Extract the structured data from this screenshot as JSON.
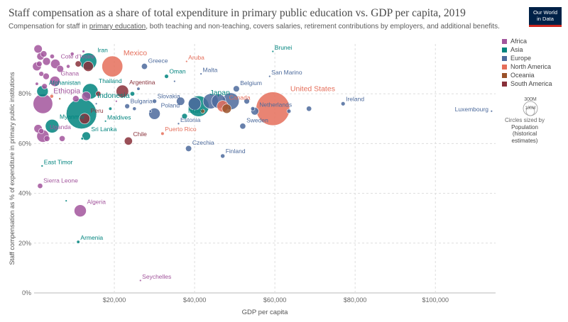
{
  "header": {
    "title": "Staff compensation as a share of total expenditure in primary public education vs. GDP per capita, 2019",
    "subtitle_before": "Compensation for staff in ",
    "subtitle_link": "primary education",
    "subtitle_after": ", both teaching and non-teaching, covers salaries, retirement contributions by employers, and additional benefits.",
    "logo_line1": "Our World",
    "logo_line2": "in Data"
  },
  "legend": {
    "items": [
      {
        "label": "Africa",
        "color": "#a2559c"
      },
      {
        "label": "Asia",
        "color": "#00847e"
      },
      {
        "label": "Europe",
        "color": "#4c6a9c"
      },
      {
        "label": "North America",
        "color": "#e56e5a"
      },
      {
        "label": "Oceania",
        "color": "#9a5129"
      },
      {
        "label": "South America",
        "color": "#883039"
      }
    ],
    "size_big": "300M",
    "size_small": "100M",
    "size_note_1": "Circles sized by",
    "size_note_2": "Population",
    "size_note_3": "(historical",
    "size_note_4": "estimates)"
  },
  "chart_data": {
    "type": "scatter",
    "title": "Staff compensation as a share of total expenditure in primary public education vs. GDP per capita, 2019",
    "xlabel": "GDP per capita",
    "ylabel": "Staff compensation as % of expenditure in primary public institutions",
    "xlim": [
      0,
      115000
    ],
    "ylim": [
      0,
      100
    ],
    "xticks": [
      20000,
      40000,
      60000,
      80000,
      100000
    ],
    "xtick_labels": [
      "$20,000",
      "$40,000",
      "$60,000",
      "$80,000",
      "$100,000"
    ],
    "yticks": [
      0,
      20,
      40,
      60,
      80
    ],
    "ytick_labels": [
      "0%",
      "20%",
      "40%",
      "60%",
      "80%"
    ],
    "points": [
      {
        "label": "Brunei",
        "x": 59500,
        "y": 97,
        "region": "Asia",
        "pop": 0.4
      },
      {
        "label": "Iran",
        "x": 13500,
        "y": 93,
        "region": "Asia",
        "pop": 84
      },
      {
        "label": "Cote d'Ivoire",
        "x": 5300,
        "y": 92,
        "region": "Africa",
        "pop": 26
      },
      {
        "label": "Mexico",
        "x": 19500,
        "y": 91,
        "region": "North America",
        "pop": 127
      },
      {
        "label": "Aruba",
        "x": 38000,
        "y": 93,
        "region": "North America",
        "pop": 0.1
      },
      {
        "label": "Greece",
        "x": 27500,
        "y": 91,
        "region": "Europe",
        "pop": 10.5
      },
      {
        "label": "Malta",
        "x": 41600,
        "y": 88,
        "region": "Europe",
        "pop": 0.5
      },
      {
        "label": "San Marino",
        "x": 58700,
        "y": 87,
        "region": "Europe",
        "pop": 0.03
      },
      {
        "label": "Oman",
        "x": 33000,
        "y": 87,
        "region": "Asia",
        "pop": 5
      },
      {
        "label": "Ghana",
        "x": 5200,
        "y": 85,
        "region": "Africa",
        "pop": 31
      },
      {
        "label": "Belgium",
        "x": 50400,
        "y": 82,
        "region": "Europe",
        "pop": 11.5
      },
      {
        "label": "Afghanistan",
        "x": 2100,
        "y": 81,
        "region": "Asia",
        "pop": 38
      },
      {
        "label": "Thailand",
        "x": 14000,
        "y": 81,
        "region": "Asia",
        "pop": 70
      },
      {
        "label": "Argentina",
        "x": 22000,
        "y": 81,
        "region": "South America",
        "pop": 45
      },
      {
        "label": "Ethiopia",
        "x": 2200,
        "y": 76,
        "region": "Africa",
        "pop": 112
      },
      {
        "label": "Indonesia",
        "x": 11800,
        "y": 72,
        "region": "Asia",
        "pop": 270
      },
      {
        "label": "Bulgaria",
        "x": 23200,
        "y": 75,
        "region": "Europe",
        "pop": 7
      },
      {
        "label": "Slovakia",
        "x": 30000,
        "y": 77,
        "region": "Europe",
        "pop": 5.5
      },
      {
        "label": "Japan",
        "x": 41000,
        "y": 75,
        "region": "Asia",
        "pop": 126
      },
      {
        "label": "Canada",
        "x": 47000,
        "y": 75,
        "region": "North America",
        "pop": 38
      },
      {
        "label": "United States",
        "x": 59500,
        "y": 74,
        "region": "North America",
        "pop": 330
      },
      {
        "label": "Ireland",
        "x": 77000,
        "y": 76,
        "region": "Europe",
        "pop": 5
      },
      {
        "label": "Luxembourg",
        "x": 114000,
        "y": 73,
        "region": "Europe",
        "pop": 0.6
      },
      {
        "label": "Netherlands",
        "x": 55000,
        "y": 73,
        "region": "Europe",
        "pop": 17.3
      },
      {
        "label": "Poland",
        "x": 30000,
        "y": 72,
        "region": "Europe",
        "pop": 38
      },
      {
        "label": "Israel",
        "x": 37500,
        "y": 71,
        "region": "Asia",
        "pop": 9
      },
      {
        "label": "Peru",
        "x": 12600,
        "y": 70,
        "region": "South America",
        "pop": 33
      },
      {
        "label": "Maldives",
        "x": 17800,
        "y": 69,
        "region": "Asia",
        "pop": 0.5
      },
      {
        "label": "Myanmar",
        "x": 4500,
        "y": 67,
        "region": "Asia",
        "pop": 54
      },
      {
        "label": "Estonia",
        "x": 36000,
        "y": 68,
        "region": "Europe",
        "pop": 1.3
      },
      {
        "label": "Sweden",
        "x": 52000,
        "y": 67,
        "region": "Europe",
        "pop": 10.3
      },
      {
        "label": "Uganda",
        "x": 2200,
        "y": 63,
        "region": "Africa",
        "pop": 44
      },
      {
        "label": "Sri Lanka",
        "x": 13000,
        "y": 63,
        "region": "Asia",
        "pop": 21
      },
      {
        "label": "Puerto Rico",
        "x": 32000,
        "y": 64,
        "region": "North America",
        "pop": 3.2
      },
      {
        "label": "Chile",
        "x": 23500,
        "y": 61,
        "region": "South America",
        "pop": 19
      },
      {
        "label": "Czechia",
        "x": 38500,
        "y": 58,
        "region": "Europe",
        "pop": 10.7
      },
      {
        "label": "Finland",
        "x": 47000,
        "y": 55,
        "region": "Europe",
        "pop": 5.5
      },
      {
        "label": "East Timor",
        "x": 2000,
        "y": 51,
        "region": "Asia",
        "pop": 1.3
      },
      {
        "label": "Sierra Leone",
        "x": 1500,
        "y": 43,
        "region": "Africa",
        "pop": 8
      },
      {
        "label": "Algeria",
        "x": 11500,
        "y": 33,
        "region": "Africa",
        "pop": 43
      },
      {
        "label": "Armenia",
        "x": 11000,
        "y": 20.5,
        "region": "Asia",
        "pop": 3
      },
      {
        "label": "Seychelles",
        "x": 26500,
        "y": 5,
        "region": "Africa",
        "pop": 0.1
      }
    ],
    "unlabeled_points": [
      {
        "x": 1000,
        "y": 98,
        "region": "Africa",
        "pop": 20
      },
      {
        "x": 1600,
        "y": 95,
        "region": "Africa",
        "pop": 16
      },
      {
        "x": 2400,
        "y": 96,
        "region": "Africa",
        "pop": 12
      },
      {
        "x": 3100,
        "y": 93,
        "region": "Africa",
        "pop": 18
      },
      {
        "x": 700,
        "y": 91,
        "region": "Africa",
        "pop": 22
      },
      {
        "x": 1300,
        "y": 92,
        "region": "Africa",
        "pop": 9
      },
      {
        "x": 4500,
        "y": 95,
        "region": "Africa",
        "pop": 6
      },
      {
        "x": 9500,
        "y": 96,
        "region": "Africa",
        "pop": 4
      },
      {
        "x": 12300,
        "y": 97,
        "region": "Africa",
        "pop": 2
      },
      {
        "x": 6500,
        "y": 90,
        "region": "Africa",
        "pop": 14
      },
      {
        "x": 8500,
        "y": 91,
        "region": "Africa",
        "pop": 4
      },
      {
        "x": 11000,
        "y": 92,
        "region": "South America",
        "pop": 11
      },
      {
        "x": 13500,
        "y": 91,
        "region": "South America",
        "pop": 30
      },
      {
        "x": 3000,
        "y": 87,
        "region": "Africa",
        "pop": 12
      },
      {
        "x": 1800,
        "y": 88,
        "region": "Africa",
        "pop": 7
      },
      {
        "x": 2600,
        "y": 83,
        "region": "Africa",
        "pop": 9
      },
      {
        "x": 700,
        "y": 84,
        "region": "Africa",
        "pop": 3
      },
      {
        "x": 4400,
        "y": 79,
        "region": "North America",
        "pop": 4
      },
      {
        "x": 6400,
        "y": 78,
        "region": "Oceania",
        "pop": 0.9
      },
      {
        "x": 10400,
        "y": 78,
        "region": "Africa",
        "pop": 12
      },
      {
        "x": 13000,
        "y": 79,
        "region": "Africa",
        "pop": 24
      },
      {
        "x": 16000,
        "y": 80,
        "region": "South America",
        "pop": 8
      },
      {
        "x": 20500,
        "y": 77,
        "region": "Africa",
        "pop": 0.1
      },
      {
        "x": 24500,
        "y": 80,
        "region": "Asia",
        "pop": 6
      },
      {
        "x": 26000,
        "y": 82,
        "region": "Europe",
        "pop": 3
      },
      {
        "x": 25000,
        "y": 74,
        "region": "Europe",
        "pop": 4
      },
      {
        "x": 29000,
        "y": 73,
        "region": "Europe",
        "pop": 2
      },
      {
        "x": 36500,
        "y": 77,
        "region": "Europe",
        "pop": 20
      },
      {
        "x": 40000,
        "y": 76,
        "region": "Europe",
        "pop": 47
      },
      {
        "x": 44000,
        "y": 77,
        "region": "Europe",
        "pop": 67
      },
      {
        "x": 46000,
        "y": 77,
        "region": "Europe",
        "pop": 60
      },
      {
        "x": 49000,
        "y": 77,
        "region": "Europe",
        "pop": 83
      },
      {
        "x": 53000,
        "y": 77,
        "region": "Europe",
        "pop": 9
      },
      {
        "x": 54500,
        "y": 74,
        "region": "Europe",
        "pop": 5
      },
      {
        "x": 63500,
        "y": 73,
        "region": "Europe",
        "pop": 5
      },
      {
        "x": 68500,
        "y": 74,
        "region": "Europe",
        "pop": 8
      },
      {
        "x": 48000,
        "y": 74,
        "region": "Oceania",
        "pop": 25
      },
      {
        "x": 42000,
        "y": 73,
        "region": "Oceania",
        "pop": 5
      },
      {
        "x": 35000,
        "y": 85,
        "region": "Europe",
        "pop": 1
      },
      {
        "x": 15500,
        "y": 76,
        "region": "Europe",
        "pop": 1
      },
      {
        "x": 19000,
        "y": 74,
        "region": "Asia",
        "pop": 3
      },
      {
        "x": 1000,
        "y": 66,
        "region": "Africa",
        "pop": 20
      },
      {
        "x": 3200,
        "y": 62,
        "region": "Africa",
        "pop": 10
      },
      {
        "x": 7000,
        "y": 62,
        "region": "Africa",
        "pop": 10
      },
      {
        "x": 1800,
        "y": 65,
        "region": "Africa",
        "pop": 8
      },
      {
        "x": 12000,
        "y": 62,
        "region": "Asia",
        "pop": 2
      },
      {
        "x": 8000,
        "y": 37,
        "region": "Asia",
        "pop": 1
      }
    ]
  }
}
